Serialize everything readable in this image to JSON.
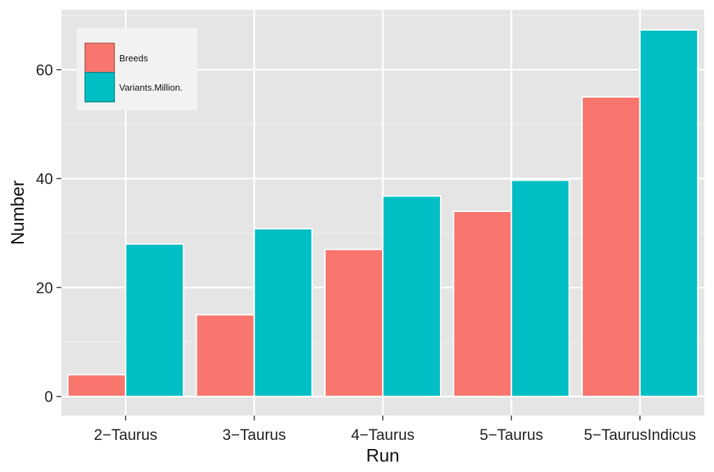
{
  "chart_data": {
    "type": "bar",
    "title": "",
    "xlabel": "Run",
    "ylabel": "Number",
    "categories": [
      "2−Taurus",
      "3−Taurus",
      "4−Taurus",
      "5−Taurus",
      "5−TaurusIndicus"
    ],
    "series": [
      {
        "name": "Breeds",
        "color": "#F8766D",
        "values": [
          4,
          15,
          27,
          34,
          55
        ]
      },
      {
        "name": "Variants.Million.",
        "color": "#00BFC4",
        "values": [
          28,
          30.8,
          36.8,
          39.7,
          67.3
        ]
      }
    ],
    "ylim": [
      -3.5,
      71
    ],
    "yticks": [
      0,
      20,
      40,
      60
    ],
    "grid": true,
    "legend_position": "top-left",
    "panel_background": "#E5E5E5",
    "grid_color": "#FFFFFF"
  }
}
